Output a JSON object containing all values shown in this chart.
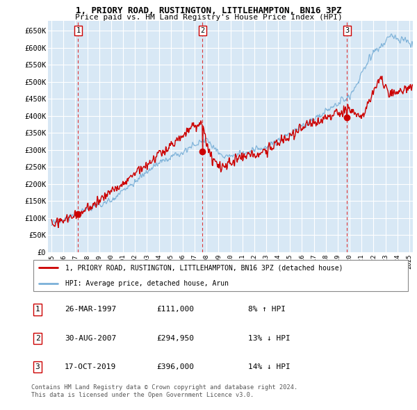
{
  "title_line1": "1, PRIORY ROAD, RUSTINGTON, LITTLEHAMPTON, BN16 3PZ",
  "title_line2": "Price paid vs. HM Land Registry's House Price Index (HPI)",
  "ylabel_ticks": [
    "£0",
    "£50K",
    "£100K",
    "£150K",
    "£200K",
    "£250K",
    "£300K",
    "£350K",
    "£400K",
    "£450K",
    "£500K",
    "£550K",
    "£600K",
    "£650K"
  ],
  "ytick_vals": [
    0,
    50000,
    100000,
    150000,
    200000,
    250000,
    300000,
    350000,
    400000,
    450000,
    500000,
    550000,
    600000,
    650000
  ],
  "xlim": [
    1994.7,
    2025.3
  ],
  "ylim": [
    0,
    680000
  ],
  "plot_bg": "#d8e8f5",
  "grid_color": "#ffffff",
  "sale_color": "#cc0000",
  "hpi_color": "#7ab0d8",
  "dashed_vline_color": "#dd2222",
  "box_edge_color": "#cc0000",
  "transactions": [
    {
      "label": "1",
      "year": 1997.23,
      "price": 111000
    },
    {
      "label": "2",
      "year": 2007.66,
      "price": 294950
    },
    {
      "label": "3",
      "year": 2019.79,
      "price": 396000
    }
  ],
  "legend_line1": "1, PRIORY ROAD, RUSTINGTON, LITTLEHAMPTON, BN16 3PZ (detached house)",
  "legend_line2": "HPI: Average price, detached house, Arun",
  "footer_line1": "Contains HM Land Registry data © Crown copyright and database right 2024.",
  "footer_line2": "This data is licensed under the Open Government Licence v3.0.",
  "table_rows": [
    [
      "1",
      "26-MAR-1997",
      "£111,000",
      "8% ↑ HPI"
    ],
    [
      "2",
      "30-AUG-2007",
      "£294,950",
      "13% ↓ HPI"
    ],
    [
      "3",
      "17-OCT-2019",
      "£396,000",
      "14% ↓ HPI"
    ]
  ]
}
